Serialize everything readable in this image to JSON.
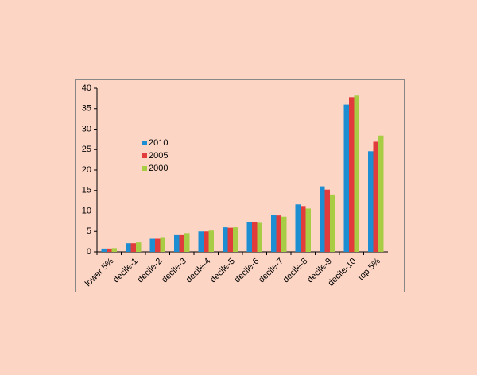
{
  "chart_data": {
    "type": "bar",
    "categories": [
      "lower 5%",
      "decile-1",
      "decile-2",
      "decile-3",
      "decile-4",
      "decile-5",
      "decile-6",
      "decile-7",
      "decile-8",
      "decile-9",
      "decile-10",
      "top 5%"
    ],
    "series": [
      {
        "name": "2010",
        "color": "#1e8ed2",
        "values": [
          0.8,
          2.1,
          3.2,
          4.1,
          5.0,
          6.0,
          7.3,
          9.1,
          11.6,
          16.0,
          36.0,
          24.6
        ]
      },
      {
        "name": "2005",
        "color": "#e23b3b",
        "values": [
          0.8,
          2.1,
          3.2,
          4.1,
          5.0,
          5.9,
          7.2,
          8.9,
          11.2,
          15.2,
          37.8,
          26.9
        ]
      },
      {
        "name": "2000",
        "color": "#a9cc45",
        "values": [
          0.9,
          2.3,
          3.6,
          4.6,
          5.2,
          6.0,
          7.1,
          8.6,
          10.6,
          14.0,
          38.2,
          28.4
        ]
      }
    ],
    "ylim": [
      0,
      40
    ],
    "yticks": [
      0,
      5,
      10,
      15,
      20,
      25,
      30,
      35,
      40
    ],
    "grid": false
  }
}
